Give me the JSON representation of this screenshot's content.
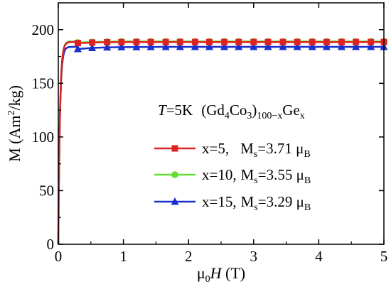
{
  "chart_data": {
    "type": "line",
    "x_axis": {
      "label_main": "μ",
      "label_sub": "0",
      "label_var": "H",
      "label_unit": " (T)",
      "range": [
        0,
        5
      ],
      "ticks": [
        "0",
        "1",
        "2",
        "3",
        "4",
        "5"
      ]
    },
    "y_axis": {
      "label_pre": "M (Am",
      "label_sup": "2",
      "label_post": "/kg)",
      "range": [
        0,
        225
      ],
      "ticks": [
        "0",
        "50",
        "100",
        "150",
        "200"
      ]
    },
    "annotation": {
      "temp_var": "T",
      "temp_val": "=5K",
      "formula_a": "(Gd",
      "sub_4": "4",
      "formula_b": "Co",
      "sub_3": "3",
      "formula_c": ")",
      "sub_100x": "100−x",
      "formula_d": "Ge",
      "sub_x": "x"
    },
    "grid": false,
    "legend_position": "bottom-right",
    "series": [
      {
        "x_label": "x=5,",
        "ms_label": "M",
        "ms_sub": "s",
        "ms_value": "=3.71 μ",
        "ms_unit_sub": "B",
        "color": "#dd2222",
        "marker": "square",
        "saturation": 188.5,
        "x": [
          0.3,
          0.52,
          0.75,
          0.97,
          1.2,
          1.42,
          1.65,
          1.87,
          2.1,
          2.32,
          2.55,
          2.77,
          3.0,
          3.22,
          3.45,
          3.67,
          3.9,
          4.12,
          4.35,
          4.57,
          4.8,
          5.0
        ],
        "y": [
          187.5,
          188,
          188.3,
          188.4,
          188.5,
          188.5,
          188.5,
          188.5,
          188.5,
          188.5,
          188.5,
          188.5,
          188.5,
          188.5,
          188.5,
          188.5,
          188.5,
          188.5,
          188.5,
          188.5,
          188.5,
          188.5
        ]
      },
      {
        "x_label": "x=10,",
        "ms_label": "M",
        "ms_sub": "s",
        "ms_value": "=3.55 μ",
        "ms_unit_sub": "B",
        "color": "#66dd33",
        "marker": "circle",
        "saturation": 189,
        "x": [
          0.3,
          0.52,
          0.75,
          0.97,
          1.2,
          1.42,
          1.65,
          1.87,
          2.1,
          2.32,
          2.55,
          2.77,
          3.0,
          3.22,
          3.45,
          3.67,
          3.9,
          4.12,
          4.35,
          4.57,
          4.8,
          5.0
        ],
        "y": [
          188,
          188.5,
          188.8,
          189,
          189,
          189,
          189,
          189,
          189,
          189,
          189,
          189,
          189,
          189,
          189,
          189,
          189,
          189,
          189,
          189,
          189,
          189
        ]
      },
      {
        "x_label": "x=15,",
        "ms_label": "M",
        "ms_sub": "s",
        "ms_value": "=3.29 μ",
        "ms_unit_sub": "B",
        "color": "#1a2fcc",
        "marker": "triangle",
        "saturation": 184,
        "x": [
          0.3,
          0.52,
          0.75,
          0.97,
          1.2,
          1.42,
          1.65,
          1.87,
          2.1,
          2.32,
          2.55,
          2.77,
          3.0,
          3.22,
          3.45,
          3.67,
          3.9,
          4.12,
          4.35,
          4.57,
          4.8,
          5.0
        ],
        "y": [
          182,
          183,
          183.5,
          183.7,
          183.8,
          183.9,
          184,
          184,
          184,
          184,
          184,
          184,
          184,
          184,
          184,
          184,
          184,
          184,
          184,
          184,
          184,
          184
        ]
      }
    ]
  }
}
